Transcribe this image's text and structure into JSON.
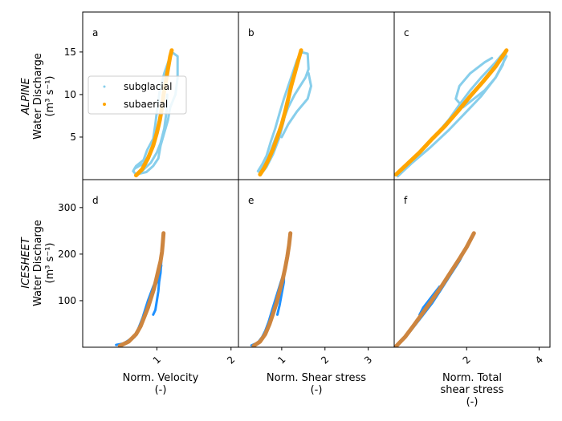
{
  "chart_data": {
    "type": "scatter",
    "colors": {
      "subglacial_alpine": "#87ceeb",
      "subaerial_alpine": "#ffa500",
      "subglacial_icesheet": "#1e90ff",
      "subaerial_icesheet": "#cd853f"
    },
    "legend": {
      "placement": "center-left of panel a",
      "entries": [
        "subglacial",
        "subaerial"
      ]
    },
    "row_labels": {
      "alpine": {
        "italic": "ALPINE",
        "line2": "Water Discharge",
        "line3": "(m³ s⁻¹)"
      },
      "icesheet": {
        "italic": "ICESHEET",
        "line2": "Water Discharge",
        "line3": "(m³ s⁻¹)"
      }
    },
    "columns": [
      {
        "xlabel1": "Norm. Velocity",
        "xlabel2": "(-)",
        "xlabel3": "",
        "xlim": [
          0.0,
          2.1
        ],
        "xticks": [
          1,
          2
        ],
        "tick_labels": [
          "1",
          "2"
        ]
      },
      {
        "xlabel1": "Norm. Shear stress",
        "xlabel2": "(-)",
        "xlabel3": "",
        "xlim": [
          0.0,
          3.6
        ],
        "xticks": [
          1,
          2,
          3
        ],
        "tick_labels": [
          "1",
          "2",
          "3"
        ]
      },
      {
        "xlabel1": "Norm. Total",
        "xlabel2": "shear stress",
        "xlabel3": "(-)",
        "xlim": [
          0.0,
          4.3
        ],
        "xticks": [
          2,
          4
        ],
        "tick_labels": [
          "2",
          "4"
        ]
      }
    ],
    "rows": [
      {
        "ylim": [
          0.0,
          19.7
        ],
        "yticks": [
          5,
          10,
          15
        ],
        "tick_labels": [
          "5",
          "10",
          "15"
        ]
      },
      {
        "ylim": [
          0.0,
          360
        ],
        "yticks": [
          100,
          200,
          300
        ],
        "tick_labels": [
          "100",
          "200",
          "300"
        ]
      }
    ],
    "panels": [
      {
        "id": "a",
        "row": 0,
        "col": 0,
        "subglacial": [
          [
            [
              0.68,
              1.0
            ],
            [
              0.72,
              1.6
            ],
            [
              0.82,
              2.3
            ],
            [
              0.87,
              3.5
            ],
            [
              0.95,
              4.8
            ],
            [
              0.98,
              6.5
            ],
            [
              1.0,
              8.0
            ],
            [
              1.04,
              10.5
            ],
            [
              1.1,
              12.5
            ],
            [
              1.16,
              14.0
            ],
            [
              1.2,
              15.0
            ],
            [
              1.28,
              14.5
            ],
            [
              1.28,
              12.0
            ],
            [
              1.25,
              10.0
            ],
            [
              1.18,
              8.5
            ],
            [
              1.15,
              7.0
            ],
            [
              1.1,
              5.5
            ],
            [
              1.05,
              4.0
            ],
            [
              1.02,
              2.5
            ],
            [
              0.95,
              1.6
            ],
            [
              0.86,
              0.9
            ],
            [
              0.72,
              0.6
            ],
            [
              0.68,
              1.0
            ]
          ],
          [
            [
              0.72,
              0.5
            ],
            [
              0.82,
              1.2
            ],
            [
              0.92,
              2.0
            ],
            [
              1.0,
              3.2
            ],
            [
              1.05,
              4.3
            ],
            [
              1.1,
              6.0
            ],
            [
              1.13,
              8.0
            ],
            [
              1.14,
              10.0
            ]
          ],
          [
            [
              0.7,
              1.3
            ],
            [
              0.82,
              1.9
            ],
            [
              0.9,
              3.0
            ],
            [
              0.95,
              4.2
            ],
            [
              1.0,
              5.5
            ],
            [
              1.03,
              7.0
            ],
            [
              1.06,
              8.5
            ]
          ]
        ],
        "subaerial": [
          [
            0.72,
            0.5
          ],
          [
            0.8,
            1.2
          ],
          [
            0.88,
            2.5
          ],
          [
            0.95,
            4.0
          ],
          [
            1.0,
            5.5
          ],
          [
            1.04,
            7.0
          ],
          [
            1.07,
            8.5
          ],
          [
            1.09,
            10.0
          ],
          [
            1.12,
            11.5
          ],
          [
            1.15,
            13.0
          ],
          [
            1.18,
            14.5
          ],
          [
            1.2,
            15.2
          ]
        ]
      },
      {
        "id": "b",
        "row": 0,
        "col": 1,
        "subglacial": [
          [
            [
              0.45,
              1.0
            ],
            [
              0.55,
              1.8
            ],
            [
              0.65,
              2.8
            ],
            [
              0.75,
              4.5
            ],
            [
              0.85,
              6.0
            ],
            [
              0.95,
              7.8
            ],
            [
              1.05,
              9.5
            ],
            [
              1.15,
              11.0
            ],
            [
              1.25,
              12.5
            ],
            [
              1.35,
              14.0
            ],
            [
              1.45,
              15.0
            ],
            [
              1.6,
              14.8
            ],
            [
              1.62,
              13.0
            ],
            [
              1.55,
              12.0
            ],
            [
              1.3,
              10.0
            ],
            [
              1.15,
              8.5
            ],
            [
              1.0,
              6.5
            ],
            [
              0.85,
              4.8
            ],
            [
              0.72,
              3.0
            ],
            [
              0.6,
              1.8
            ],
            [
              0.48,
              0.9
            ],
            [
              0.45,
              1.0
            ]
          ],
          [
            [
              1.62,
              12.5
            ],
            [
              1.68,
              11.0
            ],
            [
              1.6,
              9.5
            ],
            [
              1.35,
              8.0
            ],
            [
              1.15,
              6.5
            ],
            [
              1.0,
              5.0
            ]
          ],
          [
            [
              0.5,
              0.5
            ],
            [
              0.65,
              1.5
            ],
            [
              0.8,
              3.0
            ],
            [
              0.95,
              5.0
            ],
            [
              1.05,
              7.0
            ],
            [
              1.1,
              8.5
            ]
          ]
        ],
        "subaerial": [
          [
            0.5,
            0.6
          ],
          [
            0.6,
            1.4
          ],
          [
            0.7,
            2.4
          ],
          [
            0.8,
            3.6
          ],
          [
            0.9,
            5.0
          ],
          [
            1.0,
            6.5
          ],
          [
            1.08,
            8.0
          ],
          [
            1.15,
            9.5
          ],
          [
            1.22,
            11.0
          ],
          [
            1.3,
            12.5
          ],
          [
            1.38,
            14.0
          ],
          [
            1.45,
            15.2
          ]
        ]
      },
      {
        "id": "c",
        "row": 0,
        "col": 2,
        "subglacial": [
          [
            [
              0.05,
              0.6
            ],
            [
              0.3,
              1.5
            ],
            [
              0.6,
              2.8
            ],
            [
              0.9,
              4.0
            ],
            [
              1.2,
              5.5
            ],
            [
              1.5,
              7.0
            ],
            [
              1.8,
              8.8
            ],
            [
              2.1,
              10.5
            ],
            [
              2.4,
              12.0
            ],
            [
              2.8,
              13.8
            ],
            [
              3.0,
              14.8
            ],
            [
              3.1,
              15.2
            ],
            [
              3.0,
              13.5
            ],
            [
              2.8,
              12.0
            ],
            [
              2.5,
              10.5
            ],
            [
              2.2,
              9.5
            ],
            [
              1.9,
              8.5
            ],
            [
              1.7,
              9.5
            ],
            [
              1.8,
              11.0
            ],
            [
              2.1,
              12.5
            ],
            [
              2.5,
              13.8
            ],
            [
              2.7,
              14.3
            ]
          ],
          [
            [
              0.1,
              0.4
            ],
            [
              0.5,
              2.0
            ],
            [
              1.0,
              3.8
            ],
            [
              1.5,
              5.8
            ],
            [
              2.0,
              8.0
            ],
            [
              2.4,
              9.8
            ],
            [
              2.8,
              12.0
            ],
            [
              3.1,
              14.5
            ]
          ]
        ],
        "subaerial": [
          [
            0.05,
            0.6
          ],
          [
            0.35,
            1.8
          ],
          [
            0.7,
            3.2
          ],
          [
            1.05,
            4.8
          ],
          [
            1.4,
            6.3
          ],
          [
            1.75,
            8.0
          ],
          [
            2.1,
            9.8
          ],
          [
            2.45,
            11.5
          ],
          [
            2.8,
            13.3
          ],
          [
            3.1,
            15.2
          ]
        ]
      },
      {
        "id": "d",
        "row": 1,
        "col": 0,
        "subglacial": [
          [
            [
              0.45,
              5
            ],
            [
              0.55,
              8
            ],
            [
              0.62,
              15
            ],
            [
              0.7,
              25
            ],
            [
              0.75,
              40
            ],
            [
              0.8,
              60
            ],
            [
              0.85,
              80
            ],
            [
              0.9,
              100
            ],
            [
              0.95,
              120
            ],
            [
              1.0,
              140
            ],
            [
              1.05,
              165
            ],
            [
              1.06,
              185
            ],
            [
              1.05,
              160
            ],
            [
              1.03,
              140
            ],
            [
              1.02,
              120
            ],
            [
              1.0,
              100
            ],
            [
              0.98,
              80
            ],
            [
              0.95,
              70
            ]
          ],
          [
            [
              0.5,
              3
            ],
            [
              0.6,
              10
            ],
            [
              0.7,
              22
            ],
            [
              0.78,
              45
            ],
            [
              0.82,
              70
            ],
            [
              0.88,
              100
            ],
            [
              0.95,
              130
            ],
            [
              1.02,
              155
            ],
            [
              1.06,
              175
            ]
          ]
        ],
        "subaerial": [
          [
            0.5,
            3
          ],
          [
            0.62,
            12
          ],
          [
            0.72,
            28
          ],
          [
            0.78,
            45
          ],
          [
            0.83,
            65
          ],
          [
            0.88,
            85
          ],
          [
            0.92,
            105
          ],
          [
            0.96,
            125
          ],
          [
            0.99,
            145
          ],
          [
            1.02,
            165
          ],
          [
            1.05,
            185
          ],
          [
            1.07,
            205
          ],
          [
            1.08,
            225
          ],
          [
            1.09,
            245
          ]
        ]
      },
      {
        "id": "e",
        "row": 1,
        "col": 1,
        "subglacial": [
          [
            [
              0.3,
              4
            ],
            [
              0.45,
              10
            ],
            [
              0.55,
              22
            ],
            [
              0.62,
              35
            ],
            [
              0.7,
              55
            ],
            [
              0.78,
              80
            ],
            [
              0.88,
              110
            ],
            [
              0.98,
              140
            ],
            [
              1.05,
              160
            ],
            [
              1.05,
              140
            ],
            [
              1.0,
              115
            ],
            [
              0.95,
              90
            ],
            [
              0.9,
              70
            ]
          ],
          [
            [
              0.35,
              2
            ],
            [
              0.5,
              12
            ],
            [
              0.62,
              30
            ],
            [
              0.75,
              60
            ],
            [
              0.9,
              100
            ],
            [
              1.0,
              135
            ],
            [
              1.08,
              170
            ]
          ]
        ],
        "subaerial": [
          [
            0.35,
            3
          ],
          [
            0.5,
            12
          ],
          [
            0.62,
            28
          ],
          [
            0.72,
            50
          ],
          [
            0.8,
            72
          ],
          [
            0.88,
            95
          ],
          [
            0.95,
            120
          ],
          [
            1.02,
            145
          ],
          [
            1.08,
            170
          ],
          [
            1.13,
            195
          ],
          [
            1.17,
            220
          ],
          [
            1.2,
            245
          ]
        ]
      },
      {
        "id": "f",
        "row": 1,
        "col": 2,
        "subglacial": [
          [
            [
              0.05,
              2
            ],
            [
              0.3,
              20
            ],
            [
              0.55,
              45
            ],
            [
              0.8,
              70
            ],
            [
              1.05,
              95
            ],
            [
              1.3,
              125
            ],
            [
              1.55,
              155
            ],
            [
              1.8,
              185
            ],
            [
              2.0,
              215
            ],
            [
              2.2,
              242
            ]
          ],
          [
            [
              0.7,
              70
            ],
            [
              0.8,
              85
            ],
            [
              0.95,
              100
            ],
            [
              1.1,
              115
            ],
            [
              1.25,
              130
            ]
          ]
        ],
        "subaerial": [
          [
            0.05,
            2
          ],
          [
            0.3,
            22
          ],
          [
            0.55,
            48
          ],
          [
            0.8,
            75
          ],
          [
            1.05,
            102
          ],
          [
            1.3,
            130
          ],
          [
            1.55,
            160
          ],
          [
            1.8,
            190
          ],
          [
            2.0,
            215
          ],
          [
            2.2,
            245
          ]
        ]
      }
    ]
  }
}
